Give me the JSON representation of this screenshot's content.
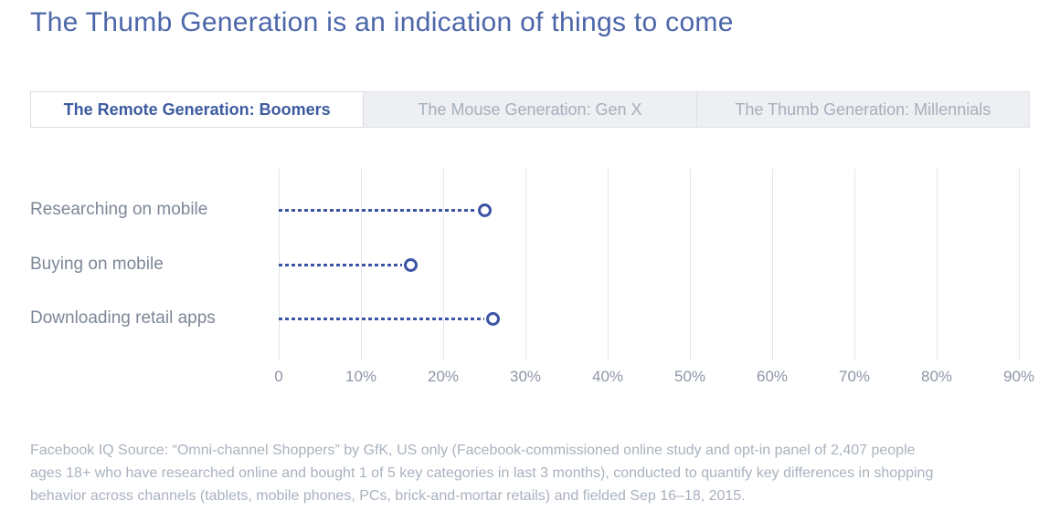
{
  "page": {
    "title": "The Thumb Generation is an indication of things to come"
  },
  "tabs": [
    {
      "label": "The Remote Generation: Boomers",
      "active": true
    },
    {
      "label": "The Mouse Generation: Gen X",
      "active": false
    },
    {
      "label": "The Thumb Generation: Millennials",
      "active": false
    }
  ],
  "chart_data": {
    "type": "bar",
    "subtype": "horizontal-lollipop-dashed",
    "categories": [
      "Researching on mobile",
      "Buying on mobile",
      "Downloading retail apps"
    ],
    "values": [
      25,
      16,
      26
    ],
    "unit": "%",
    "title": "",
    "xlabel": "",
    "ylabel": "",
    "xlim": [
      0,
      91
    ],
    "x_ticks": [
      "0",
      "10%",
      "20%",
      "30%",
      "40%",
      "50%",
      "60%",
      "70%",
      "80%",
      "90%"
    ],
    "x_tick_values": [
      0,
      10,
      20,
      30,
      40,
      50,
      60,
      70,
      80,
      90
    ],
    "grid": true,
    "legend": false,
    "accent_color": "#3b54a4",
    "gridline_color": "#e4e6ea",
    "label_color": "#7d8797",
    "tick_color": "#8e96a5"
  },
  "footer": {
    "lines": [
      "Facebook IQ Source: “Omni-channel Shoppers” by GfK, US only (Facebook-commissioned online study and opt-in panel of 2,407 people",
      "ages 18+ who have researched online and bought 1 of 5 key categories in last 3 months), conducted to quantify key differences in shopping",
      "behavior across channels (tablets, mobile phones, PCs, brick-and-mortar retails) and fielded Sep 16–18, 2015."
    ]
  },
  "colors": {
    "title": "#4c66a9",
    "active_tab_text": "#3d5ba0",
    "inactive_tab_text": "#a6afbc",
    "inactive_tab_bg": "#edeff2",
    "footer_text": "#a9b2be"
  }
}
